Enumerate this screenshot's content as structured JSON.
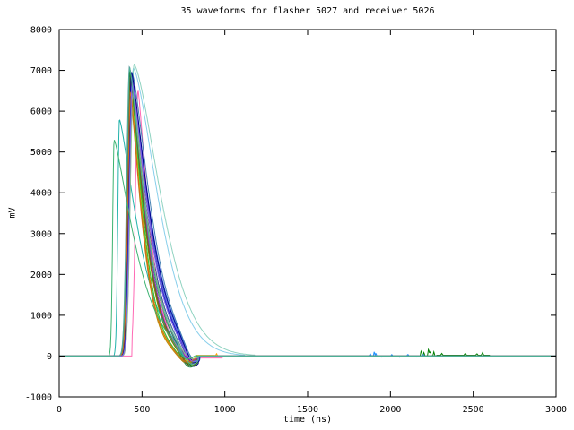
{
  "chart_data": {
    "type": "line",
    "title": "35 waveforms for flasher 5027 and receiver 5026",
    "xlabel": "time (ns)",
    "ylabel": "mV",
    "xlim": [
      0,
      3000
    ],
    "ylim": [
      -1000,
      8000
    ],
    "xticks": [
      0,
      500,
      1000,
      1500,
      2000,
      2500,
      3000
    ],
    "yticks": [
      -1000,
      0,
      1000,
      2000,
      3000,
      4000,
      5000,
      6000,
      7000,
      8000
    ],
    "grid": false,
    "legend": "none",
    "background": "#ffffff",
    "border_color": "#000000",
    "waveform_count": 35,
    "description": "35 overlaid pulse waveforms: baseline 0 mV, sharp rise near 360-440 ns, rounded peaks 5300-7150 mV near 420-480 ns, decay back through zero near 650-750 ns, undershoot to about -100..-260 mV, sharp recovery to baseline near 830-850 ns; small afterpulse noise on a blue trace near 1880-2200 ns and a green trace near 2180-2600 ns.",
    "waveform_model": "v(t)=0 before t0 and after trec; gaussian rise width sl to peak A at tp; stretched-exp decay scale sr power p; undershoot depth u centered tu (width 65); sp = noise spikes [t,amp,width]; lv = flat offset segments [t1,t2,value]",
    "waveforms": [
      {
        "c": "#87ceeb",
        "t0": 368,
        "tp": 448,
        "A": 7050,
        "sl": 30,
        "sr": 210,
        "p": 1.5,
        "u": 0,
        "tu": 900,
        "trec": 1120
      },
      {
        "c": "#8fd3c0",
        "t0": 372,
        "tp": 452,
        "A": 7140,
        "sl": 30,
        "sr": 228,
        "p": 1.5,
        "u": 0,
        "tu": 900,
        "trec": 1180
      },
      {
        "c": "#008000",
        "t0": 362,
        "tp": 430,
        "A": 6900,
        "sr": 118,
        "u": 290,
        "tu": 788,
        "trec": 836,
        "sp": [
          [
            2186,
            150,
            7
          ],
          [
            2202,
            85,
            7
          ],
          [
            2230,
            185,
            7
          ],
          [
            2240,
            120,
            7
          ],
          [
            2262,
            105,
            7
          ],
          [
            2310,
            45,
            8
          ],
          [
            2452,
            55,
            8
          ],
          [
            2522,
            38,
            8
          ],
          [
            2556,
            65,
            8
          ]
        ],
        "lv": [
          [
            2280,
            2600,
            20
          ]
        ]
      },
      {
        "c": "#000080",
        "t0": 364,
        "tp": 434,
        "A": 6760,
        "sr": 132,
        "u": 400,
        "tu": 800,
        "trec": 842
      },
      {
        "c": "#8b4513",
        "t0": 366,
        "tp": 428,
        "A": 6600,
        "sr": 100,
        "u": 230,
        "tu": 770,
        "trec": 830
      },
      {
        "c": "#ee82ee",
        "t0": 370,
        "tp": 436,
        "A": 6500,
        "sr": 110,
        "u": 200,
        "tu": 780,
        "trec": 834
      },
      {
        "c": "#0000cd",
        "t0": 368,
        "tp": 438,
        "A": 6850,
        "sr": 140,
        "u": 380,
        "tu": 803,
        "trec": 845
      },
      {
        "c": "#2e8b57",
        "t0": 358,
        "tp": 426,
        "A": 6950,
        "sr": 114,
        "u": 350,
        "tu": 784,
        "trec": 836
      },
      {
        "c": "#6b8e23",
        "t0": 365,
        "tp": 431,
        "A": 6550,
        "sr": 104,
        "u": 220,
        "tu": 774,
        "trec": 832
      },
      {
        "c": "#4169e1",
        "t0": 369,
        "tp": 440,
        "A": 6800,
        "sr": 150,
        "u": 340,
        "tu": 808,
        "trec": 848
      },
      {
        "c": "#da70d6",
        "t0": 374,
        "tp": 442,
        "A": 6450,
        "sr": 112,
        "u": 190,
        "tu": 781,
        "trec": 835
      },
      {
        "c": "#006400",
        "t0": 363,
        "tp": 429,
        "A": 7000,
        "sr": 124,
        "u": 370,
        "tu": 790,
        "trec": 840
      },
      {
        "c": "#5f9ea0",
        "t0": 358,
        "tp": 424,
        "A": 7100,
        "sr": 134,
        "u": 310,
        "tu": 794,
        "trec": 842
      },
      {
        "c": "#9932cc",
        "t0": 371,
        "tp": 437,
        "A": 6650,
        "sr": 116,
        "u": 210,
        "tu": 783,
        "trec": 836
      },
      {
        "c": "#228b22",
        "t0": 367,
        "tp": 433,
        "A": 6880,
        "sr": 126,
        "u": 355,
        "tu": 792,
        "trec": 840
      },
      {
        "c": "#1e90ff",
        "t0": 372,
        "tp": 440,
        "A": 6700,
        "sr": 144,
        "u": 330,
        "tu": 805,
        "trec": 846,
        "sp": [
          [
            1878,
            55,
            8
          ],
          [
            1902,
            105,
            6
          ],
          [
            1912,
            75,
            6
          ],
          [
            1948,
            -30,
            8
          ],
          [
            2008,
            38,
            8
          ],
          [
            2055,
            -28,
            8
          ],
          [
            2105,
            45,
            8
          ],
          [
            2158,
            -26,
            8
          ],
          [
            2198,
            40,
            8
          ]
        ]
      },
      {
        "c": "#cc2222",
        "t0": 375,
        "tp": 441,
        "A": 6480,
        "sr": 108,
        "u": 200,
        "tu": 777,
        "trec": 833
      },
      {
        "c": "#ffa500",
        "t0": 373,
        "tp": 435,
        "A": 6400,
        "sr": 96,
        "p": 1.25,
        "u": 170,
        "tu": 764,
        "trec": 828,
        "sp": [
          [
            950,
            70,
            6
          ]
        ]
      },
      {
        "c": "#ffd700",
        "t0": 376,
        "tp": 438,
        "A": 6350,
        "sr": 92,
        "p": 1.25,
        "u": 150,
        "tu": 760,
        "trec": 826,
        "lv": [
          [
            826,
            940,
            18
          ]
        ]
      },
      {
        "c": "#ff69b4",
        "t0": 440,
        "tp": 476,
        "A": 6520,
        "sl": 22,
        "sr": 94,
        "p": 1.25,
        "u": 140,
        "tu": 798,
        "trec": 844,
        "lv": [
          [
            844,
            985,
            -48
          ]
        ]
      },
      {
        "c": "#808000",
        "t0": 364,
        "tp": 432,
        "A": 6720,
        "sr": 110,
        "u": 240,
        "tu": 779,
        "trec": 834
      },
      {
        "c": "#483d8b",
        "t0": 366,
        "tp": 436,
        "A": 6820,
        "sr": 138,
        "u": 360,
        "tu": 799,
        "trec": 843
      },
      {
        "c": "#20b2aa",
        "t0": 332,
        "tp": 364,
        "A": 5800,
        "sl": 14,
        "sr": 160,
        "u": 315,
        "tu": 780,
        "trec": 841
      },
      {
        "c": "#32cd32",
        "t0": 370,
        "tp": 434,
        "A": 6580,
        "sr": 102,
        "u": 215,
        "tu": 771,
        "trec": 831
      },
      {
        "c": "#6a5acd",
        "t0": 368,
        "tp": 440,
        "A": 6760,
        "sr": 142,
        "u": 345,
        "tu": 806,
        "trec": 847
      },
      {
        "c": "#b8860b",
        "t0": 365,
        "tp": 427,
        "A": 6520,
        "sr": 98,
        "u": 205,
        "tu": 767,
        "trec": 829
      },
      {
        "c": "#4682b4",
        "t0": 371,
        "tp": 443,
        "A": 6900,
        "sr": 154,
        "p": 1.35,
        "u": 360,
        "tu": 811,
        "trec": 850
      },
      {
        "c": "#9400d3",
        "t0": 374,
        "tp": 444,
        "A": 6600,
        "sr": 120,
        "u": 225,
        "tu": 785,
        "trec": 837
      },
      {
        "c": "#556b2f",
        "t0": 361,
        "tp": 429,
        "A": 6840,
        "sr": 116,
        "u": 330,
        "tu": 787,
        "trec": 838
      },
      {
        "c": "#00008b",
        "t0": 367,
        "tp": 437,
        "A": 6950,
        "sr": 148,
        "u": 390,
        "tu": 808,
        "trec": 848
      },
      {
        "c": "#8fbc8f",
        "t0": 375,
        "tp": 445,
        "A": 6430,
        "sr": 122,
        "u": 180,
        "tu": 789,
        "trec": 838
      },
      {
        "c": "#d2691e",
        "t0": 372,
        "tp": 432,
        "A": 6470,
        "sr": 97,
        "p": 1.25,
        "u": 195,
        "tu": 765,
        "trec": 828
      },
      {
        "c": "#7b68ee",
        "t0": 369,
        "tp": 441,
        "A": 6680,
        "sr": 136,
        "u": 310,
        "tu": 801,
        "trec": 844
      },
      {
        "c": "#3cb371",
        "t0": 302,
        "tp": 332,
        "A": 5300,
        "sl": 13,
        "sr": 175,
        "u": 272,
        "tu": 760,
        "trec": 830
      },
      {
        "c": "#4db398",
        "t0": 358,
        "tp": 426,
        "A": 7060,
        "sr": 127,
        "u": 320,
        "tu": 793,
        "trec": 840
      }
    ]
  }
}
